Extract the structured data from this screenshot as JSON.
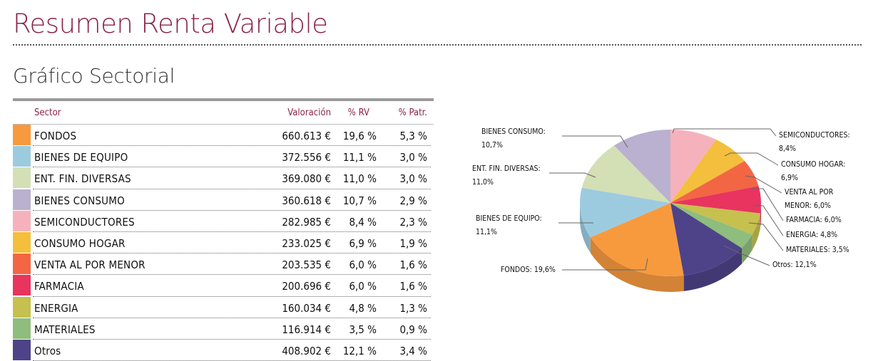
{
  "page": {
    "title": "Resumen Renta Variable",
    "section": "Gráfico Sectorial"
  },
  "table": {
    "headers": {
      "sector": "Sector",
      "valoracion": "Valoración",
      "rv": "% RV",
      "patr": "% Patr."
    },
    "rows": [
      {
        "sector": "FONDOS",
        "valoracion": "660.613 €",
        "rv": "19,6 %",
        "patr": "5,3 %",
        "color": "#f79a3e"
      },
      {
        "sector": "BIENES DE EQUIPO",
        "valoracion": "372.556 €",
        "rv": "11,1 %",
        "patr": "3,0 %",
        "color": "#9ccbe0"
      },
      {
        "sector": "ENT. FIN. DIVERSAS",
        "valoracion": "369.080 €",
        "rv": "11,0 %",
        "patr": "3,0 %",
        "color": "#d3dfb5"
      },
      {
        "sector": "BIENES CONSUMO",
        "valoracion": "360.618 €",
        "rv": "10,7 %",
        "patr": "2,9 %",
        "color": "#b9b1cf"
      },
      {
        "sector": "SEMICONDUCTORES",
        "valoracion": "282.985 €",
        "rv": "8,4 %",
        "patr": "2,3 %",
        "color": "#f5b2bc"
      },
      {
        "sector": "CONSUMO HOGAR",
        "valoracion": "233.025 €",
        "rv": "6,9 %",
        "patr": "1,9 %",
        "color": "#f3bf3c"
      },
      {
        "sector": "VENTA AL POR MENOR",
        "valoracion": "203.535 €",
        "rv": "6,0 %",
        "patr": "1,6 %",
        "color": "#f26644"
      },
      {
        "sector": "FARMACIA",
        "valoracion": "200.696 €",
        "rv": "6,0 %",
        "patr": "1,6 %",
        "color": "#e8345e"
      },
      {
        "sector": "ENERGIA",
        "valoracion": "160.034 €",
        "rv": "4,8 %",
        "patr": "1,3 %",
        "color": "#c6c04e"
      },
      {
        "sector": "MATERIALES",
        "valoracion": "116.914 €",
        "rv": "3,5 %",
        "patr": "0,9 %",
        "color": "#8fbd7d"
      },
      {
        "sector": "Otros",
        "valoracion": "408.902 €",
        "rv": "12,1 %",
        "patr": "3,4 %",
        "color": "#4e4389"
      }
    ]
  },
  "chart_data": {
    "type": "pie",
    "title": "",
    "slices": [
      {
        "label": "FONDOS: 19,6%",
        "value": 19.6,
        "color": "#f79a3e"
      },
      {
        "label": "BIENES DE EQUIPO: 11,1%",
        "value": 11.1,
        "color": "#9ccbe0"
      },
      {
        "label": "ENT. FIN. DIVERSAS: 11,0%",
        "value": 11.0,
        "color": "#d3dfb5"
      },
      {
        "label": "BIENES CONSUMO: 10,7%",
        "value": 10.7,
        "color": "#b9b1cf"
      },
      {
        "label": "SEMICONDUCTORES: 8,4%",
        "value": 8.4,
        "color": "#f5b2bc"
      },
      {
        "label": "CONSUMO HOGAR: 6,9%",
        "value": 6.9,
        "color": "#f3bf3c"
      },
      {
        "label": "VENTA AL POR MENOR: 6,0%",
        "value": 6.0,
        "color": "#f26644"
      },
      {
        "label": "FARMACIA: 6,0%",
        "value": 6.0,
        "color": "#e8345e"
      },
      {
        "label": "ENERGIA: 4,8%",
        "value": 4.8,
        "color": "#c6c04e"
      },
      {
        "label": "MATERIALES: 3,5%",
        "value": 3.5,
        "color": "#8fbd7d"
      },
      {
        "label": "Otros: 12,1%",
        "value": 12.1,
        "color": "#4e4389"
      }
    ],
    "labels": {
      "bienes_consumo": [
        "BIENES CONSUMO:",
        "10,7%"
      ],
      "ent_fin": [
        "ENT. FIN. DIVERSAS:",
        "11,0%"
      ],
      "bienes_equipo": [
        "BIENES DE EQUIPO:",
        "11,1%"
      ],
      "fondos": [
        "FONDOS: 19,6%"
      ],
      "semiconductores": [
        "SEMICONDUCTORES:",
        "8,4%"
      ],
      "consumo_hogar": [
        "CONSUMO HOGAR:",
        "6,9%"
      ],
      "venta": [
        "VENTA AL POR",
        "MENOR: 6,0%"
      ],
      "farmacia": [
        "FARMACIA: 6,0%"
      ],
      "energia": [
        "ENERGIA: 4,8%"
      ],
      "materiales": [
        "MATERIALES: 3,5%"
      ],
      "otros": [
        "Otros: 12,1%"
      ]
    }
  }
}
